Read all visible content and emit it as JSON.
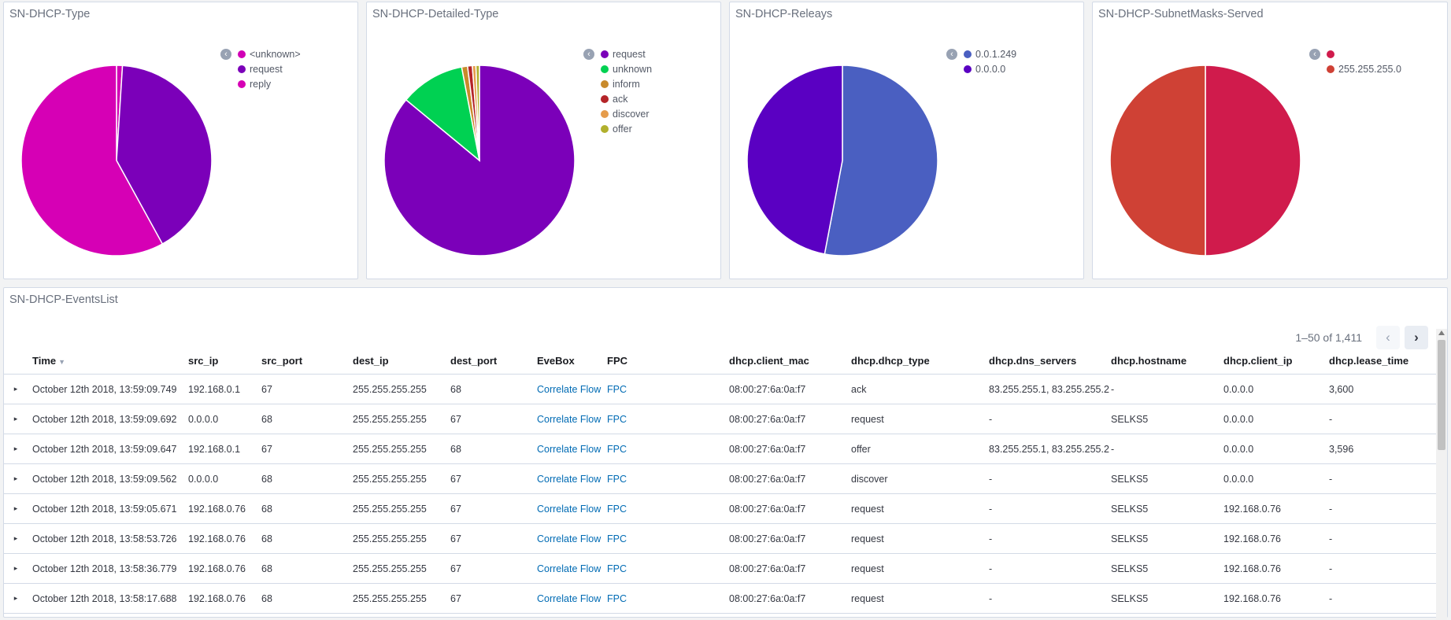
{
  "panels": [
    {
      "title": "SN-DHCP-Type",
      "slices": [
        {
          "label": "<unknown>",
          "value": 1,
          "color": "#d100b5"
        },
        {
          "label": "request",
          "value": 41,
          "color": "#7b00b9"
        },
        {
          "label": "reply",
          "value": 58,
          "color": "#d600b5"
        }
      ]
    },
    {
      "title": "SN-DHCP-Detailed-Type",
      "slices": [
        {
          "label": "request",
          "value": 86,
          "color": "#7b00b9"
        },
        {
          "label": "unknown",
          "value": 11,
          "color": "#00d152"
        },
        {
          "label": "inform",
          "value": 1,
          "color": "#c88a2b"
        },
        {
          "label": "ack",
          "value": 0.8,
          "color": "#b42428"
        },
        {
          "label": "discover",
          "value": 0.6,
          "color": "#e59c4b"
        },
        {
          "label": "offer",
          "value": 0.6,
          "color": "#b1b02d"
        }
      ]
    },
    {
      "title": "SN-DHCP-Releays",
      "slices": [
        {
          "label": "0.0.1.249",
          "value": 53,
          "color": "#4a5fc1"
        },
        {
          "label": "0.0.0.0",
          "value": 47,
          "color": "#5a00c2"
        }
      ]
    },
    {
      "title": "SN-DHCP-SubnetMasks-Served",
      "slices": [
        {
          "label": "",
          "value": 50,
          "color": "#d01b4c"
        },
        {
          "label": "255.255.255.0",
          "value": 50,
          "color": "#cf4135"
        }
      ]
    }
  ],
  "events": {
    "title": "SN-DHCP-EventsList",
    "pagination": "1–50 of 1,411",
    "columns": [
      "Time",
      "src_ip",
      "src_port",
      "dest_ip",
      "dest_port",
      "EveBox",
      "FPC",
      "dhcp.client_mac",
      "dhcp.dhcp_type",
      "dhcp.dns_servers",
      "dhcp.hostname",
      "dhcp.client_ip",
      "dhcp.lease_time"
    ],
    "rows": [
      [
        "October 12th 2018, 13:59:09.749",
        "192.168.0.1",
        "67",
        "255.255.255.255",
        "68",
        "Correlate Flow",
        "FPC",
        "08:00:27:6a:0a:f7",
        "ack",
        "83.255.255.1, 83.255.255.2",
        "-",
        "0.0.0.0",
        "3,600"
      ],
      [
        "October 12th 2018, 13:59:09.692",
        "0.0.0.0",
        "68",
        "255.255.255.255",
        "67",
        "Correlate Flow",
        "FPC",
        "08:00:27:6a:0a:f7",
        "request",
        "-",
        "SELKS5",
        "0.0.0.0",
        "-"
      ],
      [
        "October 12th 2018, 13:59:09.647",
        "192.168.0.1",
        "67",
        "255.255.255.255",
        "68",
        "Correlate Flow",
        "FPC",
        "08:00:27:6a:0a:f7",
        "offer",
        "83.255.255.1, 83.255.255.2",
        "-",
        "0.0.0.0",
        "3,596"
      ],
      [
        "October 12th 2018, 13:59:09.562",
        "0.0.0.0",
        "68",
        "255.255.255.255",
        "67",
        "Correlate Flow",
        "FPC",
        "08:00:27:6a:0a:f7",
        "discover",
        "-",
        "SELKS5",
        "0.0.0.0",
        "-"
      ],
      [
        "October 12th 2018, 13:59:05.671",
        "192.168.0.76",
        "68",
        "255.255.255.255",
        "67",
        "Correlate Flow",
        "FPC",
        "08:00:27:6a:0a:f7",
        "request",
        "-",
        "SELKS5",
        "192.168.0.76",
        "-"
      ],
      [
        "October 12th 2018, 13:58:53.726",
        "192.168.0.76",
        "68",
        "255.255.255.255",
        "67",
        "Correlate Flow",
        "FPC",
        "08:00:27:6a:0a:f7",
        "request",
        "-",
        "SELKS5",
        "192.168.0.76",
        "-"
      ],
      [
        "October 12th 2018, 13:58:36.779",
        "192.168.0.76",
        "68",
        "255.255.255.255",
        "67",
        "Correlate Flow",
        "FPC",
        "08:00:27:6a:0a:f7",
        "request",
        "-",
        "SELKS5",
        "192.168.0.76",
        "-"
      ],
      [
        "October 12th 2018, 13:58:17.688",
        "192.168.0.76",
        "68",
        "255.255.255.255",
        "67",
        "Correlate Flow",
        "FPC",
        "08:00:27:6a:0a:f7",
        "request",
        "-",
        "SELKS5",
        "192.168.0.76",
        "-"
      ]
    ]
  }
}
